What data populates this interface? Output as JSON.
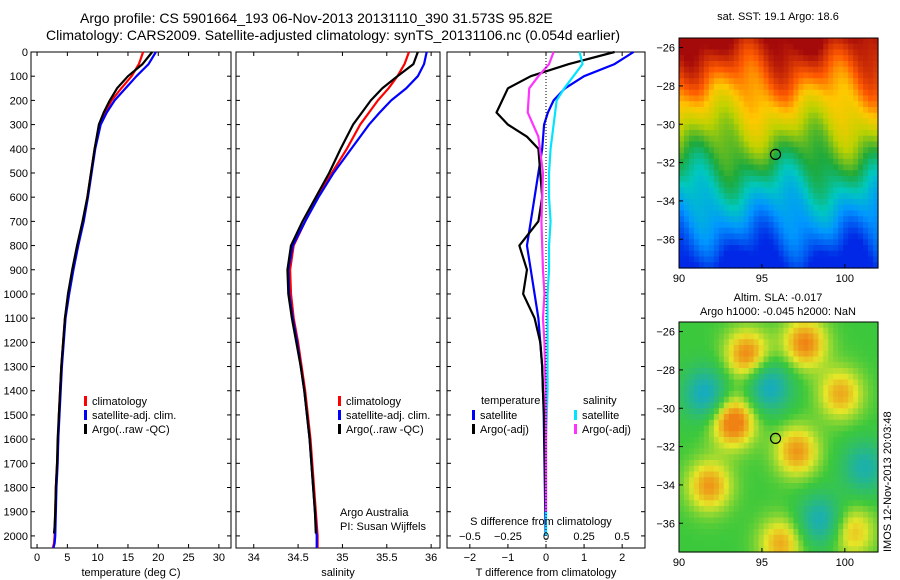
{
  "header": {
    "line1": "Argo profile: CS 5901664_193 06-Nov-2013 20131110_390 31.573S 95.82E",
    "line2": "Climatology: CARS2009. Satellite-adjusted climatology: synTS_20131106.nc (0.054d earlier)"
  },
  "side_text": "IMOS 12-Nov-2013 20:03:48",
  "credit": {
    "line1": "Argo Australia",
    "line2": "PI: Susan Wijffels"
  },
  "colors": {
    "climatology": "#ff0000",
    "satellite": "#0000ff",
    "argo": "#000000",
    "sat_s": "#00e5ff",
    "argo_s": "#ff33ff"
  },
  "chart_data": [
    {
      "type": "line",
      "xlabel": "temperature (deg C)",
      "xlim": [
        -1,
        32
      ],
      "ylim": [
        2050,
        0
      ],
      "xticks": [
        0,
        5,
        10,
        15,
        20,
        25,
        30
      ],
      "yticks": [
        0,
        100,
        200,
        300,
        400,
        500,
        600,
        700,
        800,
        900,
        1000,
        1100,
        1200,
        1300,
        1400,
        1500,
        1600,
        1700,
        1800,
        1900,
        2000
      ],
      "legend": [
        "climatology",
        "satellite-adj. clim.",
        "Argo(..raw -QC)"
      ],
      "series": [
        {
          "name": "climatology",
          "color": "#ff0000",
          "x": [
            17.5,
            16.8,
            15.6,
            13.9,
            12.3,
            11.2,
            10.3,
            9.5,
            8.9,
            8.3,
            7.6,
            6.7,
            5.9,
            5.2,
            4.6,
            4.3,
            4.0,
            3.8,
            3.6,
            3.5,
            3.3,
            3.1,
            3.0,
            2.9,
            2.8,
            2.7,
            2.6
          ],
          "y": [
            0,
            50,
            100,
            150,
            200,
            250,
            300,
            400,
            500,
            600,
            700,
            800,
            900,
            1000,
            1100,
            1200,
            1300,
            1400,
            1500,
            1600,
            1700,
            1800,
            1900,
            2000,
            2030,
            2040,
            2050
          ]
        },
        {
          "name": "satellite-adj. clim.",
          "color": "#0000ff",
          "x": [
            19.6,
            18.4,
            16.4,
            14.6,
            12.8,
            11.5,
            10.5,
            9.6,
            9.0,
            8.4,
            7.7,
            6.8,
            6.0,
            5.3,
            4.7,
            4.4,
            4.1,
            3.9,
            3.7,
            3.5,
            3.4,
            3.2,
            3.1,
            3.0,
            2.9,
            2.8,
            2.7
          ],
          "y": [
            0,
            50,
            100,
            150,
            200,
            250,
            300,
            400,
            500,
            600,
            700,
            800,
            900,
            1000,
            1100,
            1200,
            1300,
            1400,
            1500,
            1600,
            1700,
            1800,
            1900,
            2000,
            2030,
            2040,
            2050
          ]
        },
        {
          "name": "Argo(..raw -QC)",
          "color": "#000000",
          "x": [
            19.0,
            17.4,
            15.0,
            13.2,
            12.0,
            11.0,
            10.2,
            9.5,
            8.9,
            8.3,
            7.5,
            6.6,
            5.8,
            5.1,
            4.6,
            4.3,
            4.0,
            3.8,
            3.6,
            3.4,
            3.3,
            3.1,
            3.0,
            2.9,
            2.8
          ],
          "y": [
            0,
            50,
            100,
            150,
            200,
            250,
            300,
            400,
            500,
            600,
            700,
            800,
            900,
            1000,
            1100,
            1200,
            1300,
            1400,
            1500,
            1600,
            1700,
            1800,
            1900,
            1960,
            1990
          ]
        }
      ]
    },
    {
      "type": "line",
      "xlabel": "salinity",
      "xlim": [
        33.8,
        36.1
      ],
      "ylim": [
        2050,
        0
      ],
      "xticks": [
        34,
        34.5,
        35,
        35.5,
        36
      ],
      "legend": [
        "climatology",
        "satellite-adj. clim.",
        "Argo(..raw -QC)"
      ],
      "series": [
        {
          "name": "climatology",
          "color": "#ff0000",
          "x": [
            35.75,
            35.7,
            35.62,
            35.52,
            35.4,
            35.3,
            35.2,
            35.05,
            34.88,
            34.72,
            34.58,
            34.45,
            34.41,
            34.42,
            34.45,
            34.5,
            34.54,
            34.58,
            34.61,
            34.64,
            34.66,
            34.68,
            34.7,
            34.72,
            34.72
          ],
          "y": [
            0,
            50,
            100,
            150,
            200,
            250,
            300,
            400,
            500,
            600,
            700,
            800,
            900,
            1000,
            1100,
            1200,
            1300,
            1400,
            1500,
            1600,
            1700,
            1800,
            1900,
            2000,
            2050
          ]
        },
        {
          "name": "satellite-adj. clim.",
          "color": "#0000ff",
          "x": [
            35.95,
            35.92,
            35.85,
            35.72,
            35.55,
            35.42,
            35.3,
            35.1,
            34.9,
            34.73,
            34.58,
            34.44,
            34.39,
            34.4,
            34.44,
            34.49,
            34.53,
            34.57,
            34.6,
            34.63,
            34.65,
            34.67,
            34.69,
            34.71,
            34.71
          ],
          "y": [
            0,
            50,
            100,
            150,
            200,
            250,
            300,
            400,
            500,
            600,
            700,
            800,
            900,
            1000,
            1100,
            1200,
            1300,
            1400,
            1500,
            1600,
            1700,
            1800,
            1900,
            2000,
            2050
          ]
        },
        {
          "name": "Argo(..raw -QC)",
          "color": "#000000",
          "x": [
            35.85,
            35.8,
            35.62,
            35.45,
            35.32,
            35.22,
            35.12,
            34.98,
            34.85,
            34.7,
            34.55,
            34.42,
            34.38,
            34.39,
            34.43,
            34.48,
            34.53,
            34.57,
            34.6,
            34.63,
            34.65,
            34.67,
            34.69,
            34.7
          ],
          "y": [
            0,
            50,
            100,
            150,
            200,
            250,
            300,
            400,
            500,
            600,
            700,
            800,
            900,
            1000,
            1100,
            1200,
            1300,
            1400,
            1500,
            1600,
            1700,
            1800,
            1900,
            1990
          ]
        }
      ]
    },
    {
      "type": "line",
      "xlabel": "T difference from climatology",
      "x2label": "S difference from climatology",
      "xlim": [
        -2.6,
        2.6
      ],
      "ylim": [
        2050,
        0
      ],
      "xticks": [
        -2,
        -1,
        0,
        1,
        2
      ],
      "x2ticks": [
        -0.5,
        -0.25,
        0,
        0.25,
        0.5
      ],
      "legend_groups": [
        "temperature",
        "salinity"
      ],
      "legend": [
        "satellite",
        "Argo(-adj)",
        "satellite",
        "Argo(-adj)"
      ],
      "series": [
        {
          "name": "satellite",
          "group": "temperature",
          "color": "#0000ff",
          "x": [
            2.3,
            1.8,
            1.0,
            0.5,
            0.2,
            0.05,
            -0.05,
            -0.1,
            -0.2,
            -0.3,
            -0.4,
            -0.5,
            -0.4,
            -0.3,
            -0.2,
            -0.15,
            -0.1,
            -0.08,
            -0.06,
            -0.05,
            -0.04,
            -0.03,
            -0.02,
            -0.01
          ],
          "y": [
            0,
            50,
            100,
            150,
            200,
            250,
            300,
            400,
            500,
            600,
            700,
            800,
            900,
            1000,
            1100,
            1200,
            1300,
            1400,
            1500,
            1600,
            1700,
            1800,
            1900,
            2000
          ]
        },
        {
          "name": "Argo(-adj)",
          "group": "temperature",
          "color": "#000000",
          "x": [
            1.8,
            0.6,
            -0.4,
            -1.0,
            -1.3,
            -1.0,
            -0.5,
            -0.2,
            -0.15,
            -0.1,
            -0.2,
            -0.7,
            -0.5,
            -0.6,
            -0.3,
            -0.15,
            -0.1,
            -0.08,
            -0.05,
            -0.04,
            -0.03,
            -0.02,
            -0.01
          ],
          "y": [
            0,
            50,
            100,
            150,
            250,
            300,
            350,
            400,
            500,
            600,
            700,
            800,
            900,
            1000,
            1100,
            1200,
            1300,
            1400,
            1500,
            1600,
            1700,
            1800,
            1900
          ]
        },
        {
          "name": "satellite",
          "group": "salinity",
          "color": "#00e5ff",
          "x": [
            0.22,
            0.24,
            0.18,
            0.12,
            0.07,
            0.05,
            0.03,
            0.02,
            0.02,
            0.03,
            0.02,
            0.02,
            0.01,
            0.01,
            0.01,
            0.0,
            0.0,
            0.0,
            0.0
          ],
          "y": [
            0,
            50,
            100,
            150,
            200,
            300,
            400,
            500,
            600,
            700,
            800,
            900,
            1000,
            1200,
            1400,
            1600,
            1800,
            1900,
            2000
          ]
        },
        {
          "name": "Argo(-adj)",
          "group": "salinity",
          "color": "#ff33ff",
          "x": [
            0.05,
            0.02,
            -0.05,
            -0.11,
            -0.12,
            -0.05,
            -0.02,
            -0.03,
            -0.02,
            -0.01,
            -0.02,
            -0.01,
            0.0,
            0.0
          ],
          "y": [
            0,
            50,
            100,
            150,
            250,
            350,
            500,
            700,
            900,
            1000,
            1100,
            1200,
            1500,
            1900
          ]
        }
      ]
    },
    {
      "type": "heatmap",
      "title": "sat. SST: 19.1 Argo: 18.6",
      "xlim": [
        90,
        102
      ],
      "ylim": [
        -37.5,
        -25.5
      ],
      "xticks": [
        90,
        95,
        100
      ],
      "yticks": [
        -26,
        -28,
        -30,
        -32,
        -34,
        -36
      ],
      "marker": {
        "lon": 95.82,
        "lat": -31.573
      }
    },
    {
      "type": "heatmap",
      "title_line1": "Altim. SLA: -0.017",
      "title_line2": "Argo h1000: -0.045 h2000: NaN",
      "xlim": [
        90,
        102
      ],
      "ylim": [
        -37.5,
        -25.5
      ],
      "xticks": [
        90,
        95,
        100
      ],
      "yticks": [
        -26,
        -28,
        -30,
        -32,
        -34,
        -36
      ],
      "marker": {
        "lon": 95.82,
        "lat": -31.573
      }
    }
  ]
}
